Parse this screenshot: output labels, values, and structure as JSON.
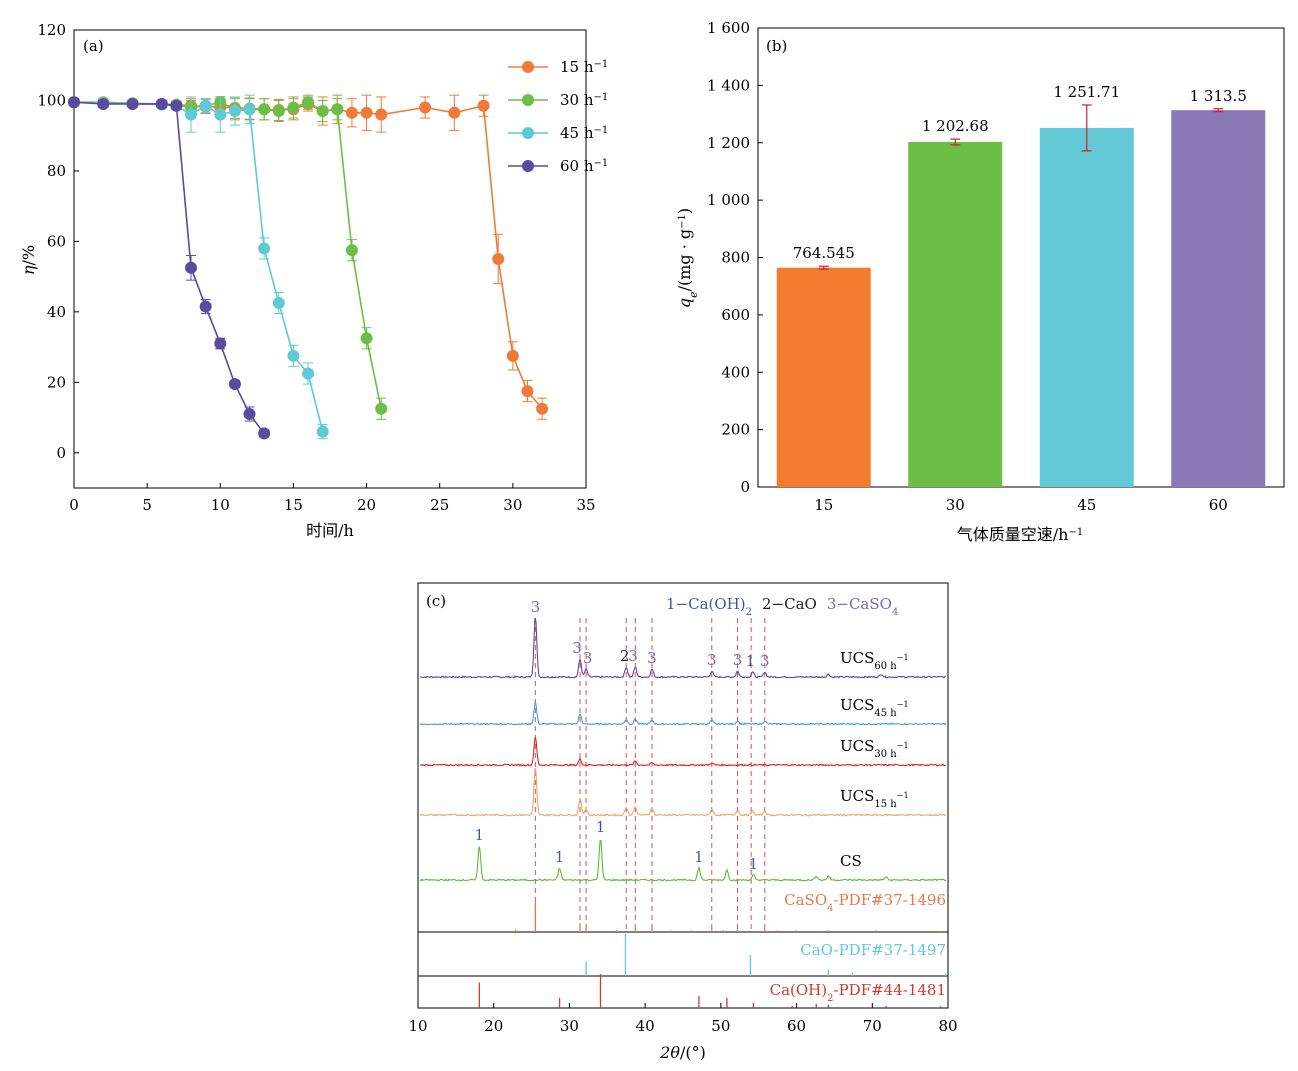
{
  "chart_data": [
    {
      "panel": "(a)",
      "type": "line",
      "title": "",
      "xlabel": "时间/h",
      "ylabel_symbol": "η",
      "ylabel_unit": "/%",
      "xlim": [
        0,
        35
      ],
      "ylim": [
        -10,
        120
      ],
      "xticks": [
        0,
        5,
        10,
        15,
        20,
        25,
        30,
        35
      ],
      "yticks": [
        0,
        20,
        40,
        60,
        80,
        100,
        120
      ],
      "legend": "top-right",
      "series": [
        {
          "name_main": "15 h",
          "name_sup": "−1",
          "color": "#F07A3A",
          "x": [
            0,
            2,
            4,
            6,
            7,
            8,
            9,
            10,
            11,
            12,
            13,
            14,
            15,
            16,
            17,
            18,
            19,
            20,
            21,
            24,
            26,
            28,
            29,
            30,
            31,
            32
          ],
          "y": [
            99.5,
            99.3,
            99.1,
            99,
            98.8,
            98.5,
            98.3,
            98.1,
            97.9,
            97.7,
            97.5,
            97.3,
            97.5,
            99,
            97,
            97.5,
            96.5,
            96.5,
            96,
            98,
            96.5,
            98.5,
            55,
            27.5,
            17.5,
            12.5
          ],
          "err": [
            1,
            1,
            1,
            1,
            1,
            2,
            2,
            3,
            3,
            3,
            3,
            3,
            3,
            2,
            4,
            4,
            4,
            5,
            5,
            3,
            5,
            3,
            7,
            4,
            3,
            3
          ]
        },
        {
          "name_main": "30 h",
          "name_sup": "−1",
          "color": "#6BBF47",
          "x": [
            0,
            2,
            4,
            6,
            7,
            8,
            9,
            10,
            11,
            12,
            13,
            14,
            15,
            16,
            17,
            18,
            19,
            20,
            21
          ],
          "y": [
            99.5,
            99.5,
            99.2,
            99,
            98.8,
            98,
            98.5,
            99.5,
            97.5,
            97.5,
            97.5,
            97,
            98,
            99.5,
            97,
            97.5,
            57.5,
            32.5,
            12.5
          ],
          "err": [
            1,
            1,
            1,
            1,
            1,
            2,
            2,
            1,
            3,
            3,
            3,
            3,
            3,
            2,
            3,
            3,
            3,
            3,
            3
          ]
        },
        {
          "name_main": "45 h",
          "name_sup": "−1",
          "color": "#5ECAD6",
          "x": [
            0,
            2,
            4,
            6,
            7,
            8,
            9,
            10,
            11,
            12,
            13,
            14,
            15,
            16,
            17
          ],
          "y": [
            99.5,
            99.2,
            99,
            98.8,
            98.5,
            96,
            98.5,
            96,
            97,
            97.5,
            58,
            42.5,
            27.5,
            22.5,
            6
          ],
          "err": [
            1,
            1,
            1,
            1,
            1,
            5,
            2,
            5,
            4,
            4,
            3,
            3,
            3,
            3,
            2
          ]
        },
        {
          "name_main": "60 h",
          "name_sup": "−1",
          "color": "#5A4AA0",
          "x": [
            0,
            2,
            4,
            6,
            7,
            8,
            9,
            10,
            11,
            12,
            13
          ],
          "y": [
            99.5,
            99,
            99,
            99,
            98.5,
            52.5,
            41.5,
            31,
            19.5,
            11,
            5.5
          ],
          "err": [
            1,
            1,
            1,
            1,
            1,
            3.5,
            2,
            1.5,
            1,
            2,
            1
          ]
        }
      ]
    },
    {
      "panel": "(b)",
      "type": "bar",
      "title": "",
      "xlabel_main": "气体质量空速/h",
      "xlabel_sup": "−1",
      "ylabel_symbol": "q",
      "ylabel_sub": "e",
      "ylabel_unit_main": "/(mg · g",
      "ylabel_unit_sup": "−1",
      "ylabel_unit_close": ")",
      "ylim": [
        0,
        1600
      ],
      "yticks": [
        0,
        200,
        400,
        600,
        800,
        1000,
        1200,
        1400,
        1600
      ],
      "ytick_labels": [
        "0",
        "200",
        "400",
        "600",
        "800",
        "1 000",
        "1 200",
        "1 400",
        "1 600"
      ],
      "categories": [
        "15",
        "30",
        "45",
        "60"
      ],
      "values": [
        764.545,
        1202.68,
        1251.71,
        1313.5
      ],
      "value_labels": [
        "764.545",
        "1 202.68",
        "1 251.71",
        "1 313.5"
      ],
      "errors": [
        5,
        10,
        80,
        5
      ],
      "colors": [
        "#F47C30",
        "#6DBE45",
        "#63C9D6",
        "#8A77B5"
      ],
      "error_color": "#D0202A"
    },
    {
      "panel": "(c)",
      "type": "line",
      "title": "",
      "xlabel_symbol": "2θ",
      "xlabel_unit": "/(°)",
      "xlim": [
        10,
        80
      ],
      "xticks": [
        10,
        20,
        30,
        40,
        50,
        60,
        70,
        80
      ],
      "legend_entries": [
        {
          "main": "1−Ca(OH)",
          "sub": "2",
          "color": "#3B5BA5"
        },
        {
          "main": "2−CaO",
          "sub": "",
          "color": "#222222"
        },
        {
          "main": "3−CaSO",
          "sub": "4",
          "color": "#7B6AAE"
        }
      ],
      "series": [
        {
          "name_main": "UCS",
          "name_sub": "60 h",
          "name_sup": "−1",
          "color": "#5A4AA0",
          "baseline": 677,
          "peaks": [
            [
              25.5,
              62
            ],
            [
              31.4,
              18
            ],
            [
              32.2,
              8
            ],
            [
              37.5,
              10
            ],
            [
              38.7,
              10
            ],
            [
              40.9,
              8
            ],
            [
              48.8,
              6
            ],
            [
              52.2,
              6
            ],
            [
              54.2,
              5
            ],
            [
              55.8,
              5
            ],
            [
              64.2,
              3
            ],
            [
              71.2,
              3
            ]
          ]
        },
        {
          "name_main": "UCS",
          "name_sub": "45 h",
          "name_sup": "−1",
          "color": "#4A9FD8",
          "baseline": 724,
          "peaks": [
            [
              25.5,
              22
            ],
            [
              31.4,
              10
            ],
            [
              37.5,
              5
            ],
            [
              38.7,
              5
            ],
            [
              40.9,
              4
            ],
            [
              48.8,
              4
            ],
            [
              52.2,
              3
            ],
            [
              55.8,
              3
            ]
          ]
        },
        {
          "name_main": "UCS",
          "name_sub": "30 h",
          "name_sup": "−1",
          "color": "#D8262A",
          "baseline": 765,
          "peaks": [
            [
              25.5,
              28
            ],
            [
              31.4,
              6
            ],
            [
              38.7,
              4
            ],
            [
              40.9,
              2
            ],
            [
              48.8,
              2
            ]
          ]
        },
        {
          "name_main": "UCS",
          "name_sub": "15 h",
          "name_sup": "−1",
          "color": "#E8A868",
          "baseline": 815,
          "peaks": [
            [
              25.5,
              48
            ],
            [
              31.4,
              16
            ],
            [
              32.2,
              6
            ],
            [
              37.5,
              8
            ],
            [
              38.7,
              8
            ],
            [
              40.9,
              7
            ],
            [
              48.8,
              6
            ],
            [
              52.2,
              5
            ],
            [
              54.2,
              4
            ],
            [
              55.8,
              4
            ]
          ]
        },
        {
          "name_main": "CS",
          "name_sub": "",
          "name_sup": "",
          "color": "#63B83A",
          "baseline": 880,
          "peaks": [
            [
              18.1,
              34
            ],
            [
              28.7,
              12
            ],
            [
              34.1,
              42
            ],
            [
              47.1,
              12
            ],
            [
              50.8,
              10
            ],
            [
              54.3,
              5
            ],
            [
              62.6,
              4
            ],
            [
              64.2,
              4
            ],
            [
              71.8,
              3
            ]
          ]
        }
      ],
      "peak_labels": [
        {
          "x": 25.5,
          "label": "3",
          "row": "ucs60",
          "color": "#7B6AAE"
        },
        {
          "x": 31.0,
          "label": "3",
          "row": "ucs60",
          "color": "#7B6AAE"
        },
        {
          "x": 32.4,
          "label": "3",
          "row": "ucs60",
          "color": "#7B6AAE"
        },
        {
          "x": 37.3,
          "label": "2",
          "row": "ucs60",
          "color": "#222222"
        },
        {
          "x": 38.4,
          "label": "3",
          "row": "ucs60",
          "color": "#7B6AAE"
        },
        {
          "x": 40.9,
          "label": "3",
          "row": "ucs60",
          "color": "#7B6AAE"
        },
        {
          "x": 48.8,
          "label": "3",
          "row": "ucs60",
          "color": "#7B6AAE"
        },
        {
          "x": 52.2,
          "label": "3",
          "row": "ucs60",
          "color": "#7B6AAE"
        },
        {
          "x": 53.9,
          "label": "1",
          "row": "ucs60",
          "color": "#3B5BA5"
        },
        {
          "x": 55.8,
          "label": "3",
          "row": "ucs60",
          "color": "#7B6AAE"
        },
        {
          "x": 18.1,
          "label": "1",
          "row": "cs",
          "color": "#3B5BA5"
        },
        {
          "x": 28.7,
          "label": "1",
          "row": "cs",
          "color": "#3B5BA5"
        },
        {
          "x": 34.1,
          "label": "1",
          "row": "cs",
          "color": "#3B5BA5"
        },
        {
          "x": 47.1,
          "label": "1",
          "row": "cs",
          "color": "#3B5BA5"
        },
        {
          "x": 54.3,
          "label": "1",
          "row": "cs",
          "color": "#3B5BA5"
        }
      ],
      "guide_lines_x": [
        25.5,
        31.4,
        32.2,
        37.5,
        38.7,
        40.9,
        48.8,
        52.2,
        54.0,
        55.8
      ],
      "references": [
        {
          "name_main": "CaSO",
          "name_sub": "4",
          "name_rest": "-PDF#37-1496",
          "color": "#E8784A",
          "sticks": [
            [
              22.9,
              0.08
            ],
            [
              25.5,
              1
            ],
            [
              31.4,
              0.3
            ],
            [
              32.2,
              0.15
            ],
            [
              36.2,
              0.06
            ],
            [
              38.7,
              0.12
            ],
            [
              40.9,
              0.2
            ],
            [
              43.4,
              0.05
            ],
            [
              46.0,
              0.05
            ],
            [
              48.8,
              0.12
            ],
            [
              50.3,
              0.06
            ],
            [
              52.2,
              0.08
            ],
            [
              55.8,
              0.1
            ],
            [
              57.3,
              0.05
            ],
            [
              59.9,
              0.05
            ],
            [
              62.5,
              0.04
            ],
            [
              64.2,
              0.06
            ],
            [
              68.0,
              0.04
            ],
            [
              70.5,
              0.05
            ],
            [
              74.0,
              0.04
            ],
            [
              77.5,
              0.04
            ],
            [
              79.0,
              0.03
            ]
          ]
        },
        {
          "name_main": "CaO-PDF#37-1497",
          "name_sub": "",
          "name_rest": "",
          "color": "#5ECAD6",
          "sticks": [
            [
              32.2,
              0.35
            ],
            [
              37.4,
              1
            ],
            [
              53.9,
              0.5
            ],
            [
              64.2,
              0.15
            ],
            [
              67.4,
              0.08
            ],
            [
              79.7,
              0.06
            ]
          ]
        },
        {
          "name_main": "Ca(OH)",
          "name_sub": "2",
          "name_rest": "-PDF#44-1481",
          "color": "#D23A2E",
          "sticks": [
            [
              18.1,
              0.75
            ],
            [
              28.7,
              0.3
            ],
            [
              34.1,
              1
            ],
            [
              47.1,
              0.35
            ],
            [
              50.8,
              0.3
            ],
            [
              54.3,
              0.15
            ],
            [
              59.4,
              0.06
            ],
            [
              62.6,
              0.12
            ],
            [
              64.2,
              0.1
            ],
            [
              71.8,
              0.06
            ],
            [
              79.0,
              0.05
            ]
          ]
        }
      ]
    }
  ]
}
